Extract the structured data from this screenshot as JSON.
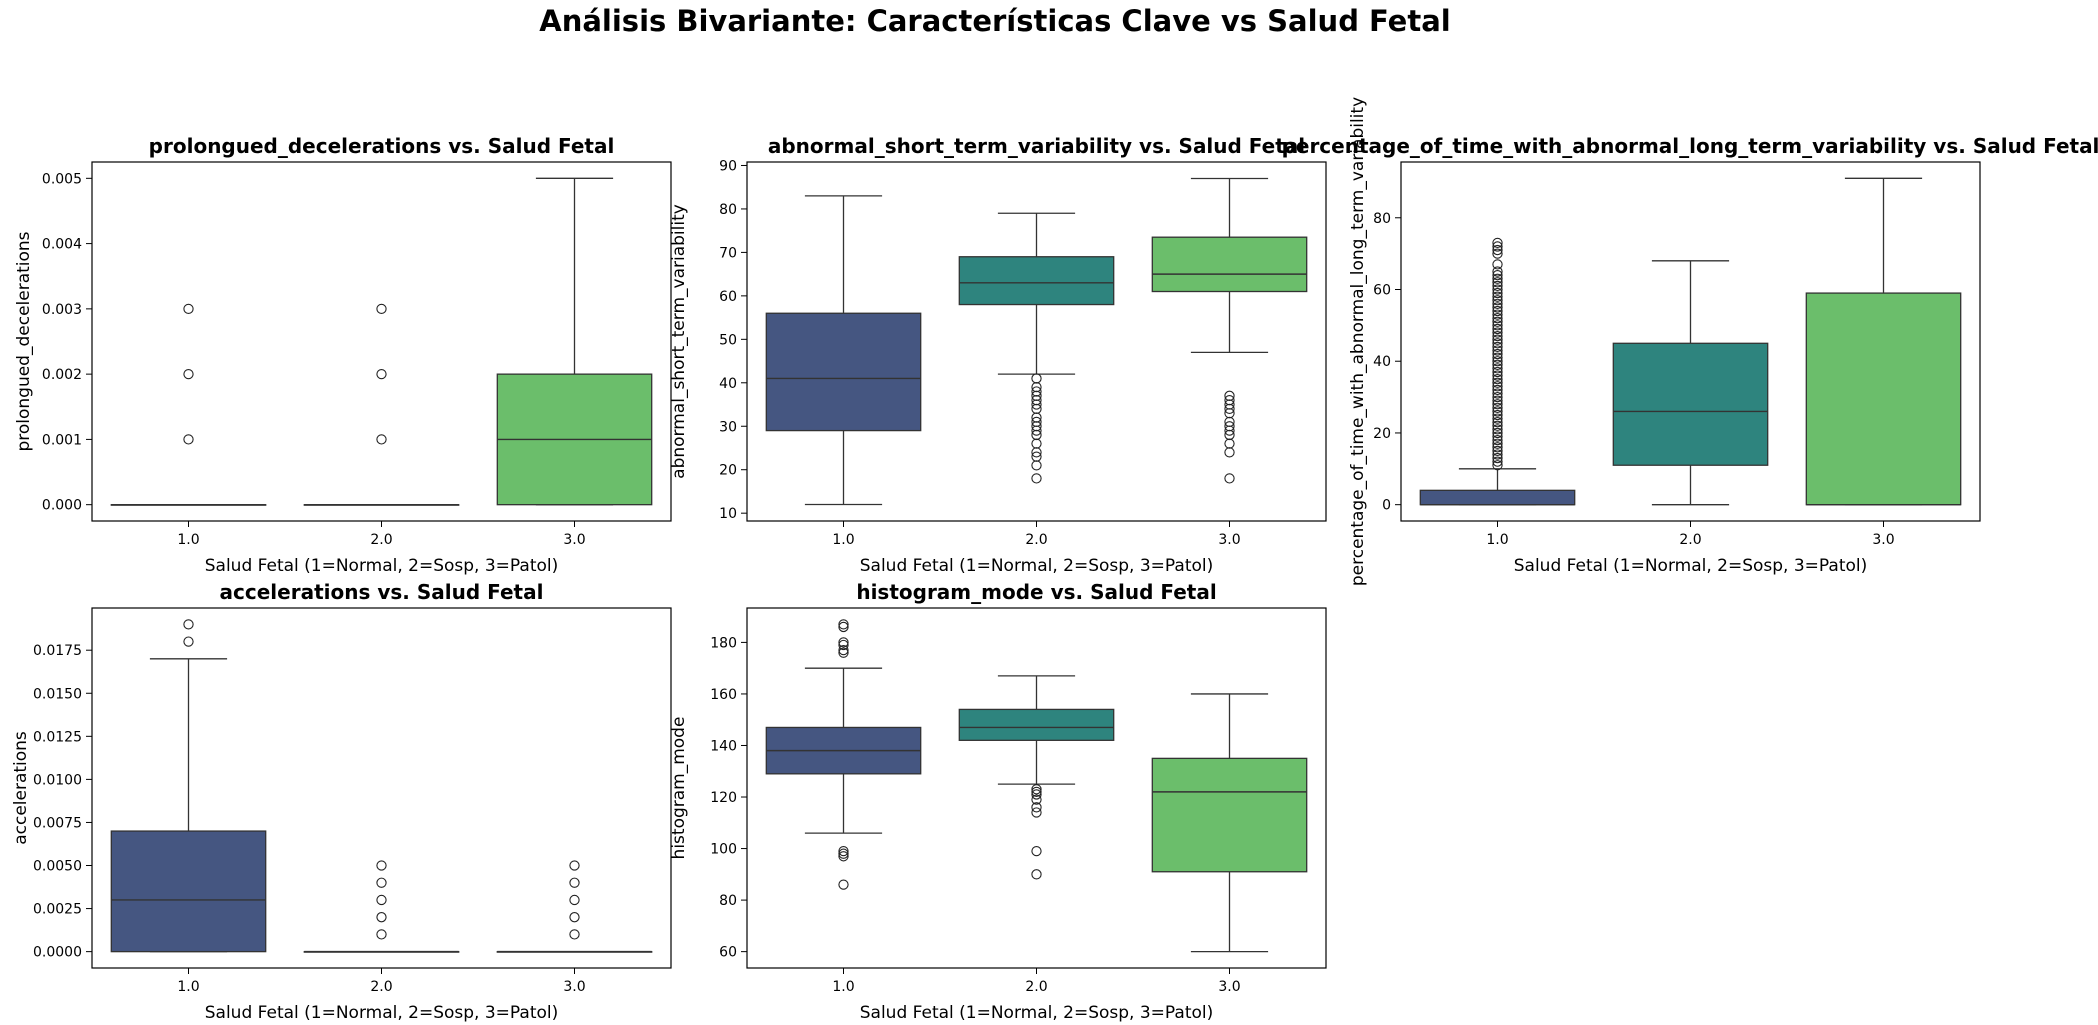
{
  "figure": {
    "suptitle": "Análisis Bivariante: Características Clave vs Salud Fetal"
  },
  "palette": {
    "1.0": "#455681",
    "2.0": "#2e847e",
    "3.0": "#6bbe6b",
    "median_line": "#333333",
    "axis": "#000000"
  },
  "chart_data": [
    {
      "type": "box",
      "title": "prolongued_decelerations vs. Salud Fetal",
      "xlabel": "Salud Fetal (1=Normal, 2=Sosp, 3=Patol)",
      "ylabel": "prolongued_decelerations",
      "categories": [
        "1.0",
        "2.0",
        "3.0"
      ],
      "ylim": [
        -0.00025,
        0.00525
      ],
      "yticks": [
        0.0,
        0.001,
        0.002,
        0.003,
        0.004,
        0.005
      ],
      "ytick_labels": [
        "0.000",
        "0.001",
        "0.002",
        "0.003",
        "0.004",
        "0.005"
      ],
      "boxes": [
        {
          "category": "1.0",
          "q1": 0.0,
          "median": 0.0,
          "q3": 0.0,
          "whisker_low": 0.0,
          "whisker_high": 0.0,
          "outliers": [
            0.001,
            0.002,
            0.003
          ]
        },
        {
          "category": "2.0",
          "q1": 0.0,
          "median": 0.0,
          "q3": 0.0,
          "whisker_low": 0.0,
          "whisker_high": 0.0,
          "outliers": [
            0.001,
            0.002,
            0.003
          ]
        },
        {
          "category": "3.0",
          "q1": 0.0,
          "median": 0.001,
          "q3": 0.002,
          "whisker_low": 0.0,
          "whisker_high": 0.005,
          "outliers": []
        }
      ]
    },
    {
      "type": "box",
      "title": "abnormal_short_term_variability vs. Salud Fetal",
      "xlabel": "Salud Fetal (1=Normal, 2=Sosp, 3=Patol)",
      "ylabel": "abnormal_short_term_variability",
      "categories": [
        "1.0",
        "2.0",
        "3.0"
      ],
      "ylim": [
        8.2,
        90.8
      ],
      "yticks": [
        10,
        20,
        30,
        40,
        50,
        60,
        70,
        80,
        90
      ],
      "ytick_labels": [
        "10",
        "20",
        "30",
        "40",
        "50",
        "60",
        "70",
        "80",
        "90"
      ],
      "boxes": [
        {
          "category": "1.0",
          "q1": 29,
          "median": 41,
          "q3": 56,
          "whisker_low": 12,
          "whisker_high": 83,
          "outliers": []
        },
        {
          "category": "2.0",
          "q1": 58,
          "median": 63,
          "q3": 69,
          "whisker_low": 42,
          "whisker_high": 79,
          "outliers": [
            18,
            21,
            23,
            24,
            26,
            28,
            29,
            30,
            31,
            32,
            34,
            35,
            36,
            37,
            38,
            39,
            41
          ]
        },
        {
          "category": "3.0",
          "q1": 61,
          "median": 65,
          "q3": 73.5,
          "whisker_low": 47,
          "whisker_high": 87,
          "outliers": [
            18,
            24,
            26,
            28,
            29,
            30,
            31,
            33,
            34,
            35,
            36,
            37
          ]
        }
      ]
    },
    {
      "type": "box",
      "title": "percentage_of_time_with_abnormal_long_term_variability vs. Salud Fetal",
      "xlabel": "Salud Fetal (1=Normal, 2=Sosp, 3=Patol)",
      "ylabel": "percentage_of_time_with_abnormal_long_term_variability",
      "categories": [
        "1.0",
        "2.0",
        "3.0"
      ],
      "ylim": [
        -4.55,
        95.55
      ],
      "yticks": [
        0,
        20,
        40,
        60,
        80
      ],
      "ytick_labels": [
        "0",
        "20",
        "40",
        "60",
        "80"
      ],
      "boxes": [
        {
          "category": "1.0",
          "q1": 0,
          "median": 0,
          "q3": 4,
          "whisker_low": 0,
          "whisker_high": 10,
          "outliers": [
            11,
            12,
            13,
            14,
            15,
            16,
            17,
            18,
            19,
            20,
            21,
            22,
            23,
            24,
            25,
            26,
            27,
            28,
            29,
            30,
            31,
            32,
            33,
            34,
            35,
            36,
            37,
            38,
            39,
            40,
            41,
            42,
            43,
            44,
            45,
            46,
            47,
            48,
            49,
            50,
            51,
            52,
            53,
            54,
            55,
            56,
            57,
            58,
            59,
            60,
            61,
            62,
            63,
            64,
            65,
            67,
            70,
            71,
            72,
            73
          ]
        },
        {
          "category": "2.0",
          "q1": 11,
          "median": 26,
          "q3": 45,
          "whisker_low": 0,
          "whisker_high": 68,
          "outliers": []
        },
        {
          "category": "3.0",
          "q1": 0,
          "median": 0,
          "q3": 59,
          "whisker_low": 0,
          "whisker_high": 91,
          "outliers": []
        }
      ]
    },
    {
      "type": "box",
      "title": "accelerations vs. Salud Fetal",
      "xlabel": "Salud Fetal (1=Normal, 2=Sosp, 3=Patol)",
      "ylabel": "accelerations",
      "categories": [
        "1.0",
        "2.0",
        "3.0"
      ],
      "ylim": [
        -0.00095,
        0.01995
      ],
      "yticks": [
        0.0,
        0.0025,
        0.005,
        0.0075,
        0.01,
        0.0125,
        0.015,
        0.0175
      ],
      "ytick_labels": [
        "0.0000",
        "0.0025",
        "0.0050",
        "0.0075",
        "0.0100",
        "0.0125",
        "0.0150",
        "0.0175"
      ],
      "boxes": [
        {
          "category": "1.0",
          "q1": 0.0,
          "median": 0.003,
          "q3": 0.007,
          "whisker_low": 0.0,
          "whisker_high": 0.017,
          "outliers": [
            0.018,
            0.019
          ]
        },
        {
          "category": "2.0",
          "q1": 0.0,
          "median": 0.0,
          "q3": 0.0,
          "whisker_low": 0.0,
          "whisker_high": 0.0,
          "outliers": [
            0.001,
            0.002,
            0.003,
            0.004,
            0.005
          ]
        },
        {
          "category": "3.0",
          "q1": 0.0,
          "median": 0.0,
          "q3": 0.0,
          "whisker_low": 0.0,
          "whisker_high": 0.0,
          "outliers": [
            0.001,
            0.002,
            0.003,
            0.004,
            0.005
          ]
        }
      ]
    },
    {
      "type": "box",
      "title": "histogram_mode vs. Salud Fetal",
      "xlabel": "Salud Fetal (1=Normal, 2=Sosp, 3=Patol)",
      "ylabel": "histogram_mode",
      "categories": [
        "1.0",
        "2.0",
        "3.0"
      ],
      "ylim": [
        53.65,
        193.35
      ],
      "yticks": [
        60,
        80,
        100,
        120,
        140,
        160,
        180
      ],
      "ytick_labels": [
        "60",
        "80",
        "100",
        "120",
        "140",
        "160",
        "180"
      ],
      "boxes": [
        {
          "category": "1.0",
          "q1": 129,
          "median": 138,
          "q3": 147,
          "whisker_low": 106,
          "whisker_high": 170,
          "outliers": [
            86,
            97,
            98,
            99,
            176,
            177,
            179,
            180,
            186,
            187
          ]
        },
        {
          "category": "2.0",
          "q1": 142,
          "median": 147,
          "q3": 154,
          "whisker_low": 125,
          "whisker_high": 167,
          "outliers": [
            90,
            99,
            114,
            116,
            119,
            121,
            122,
            123
          ]
        },
        {
          "category": "3.0",
          "q1": 91,
          "median": 122,
          "q3": 135,
          "whisker_low": 60,
          "whisker_high": 160,
          "outliers": []
        }
      ]
    }
  ]
}
